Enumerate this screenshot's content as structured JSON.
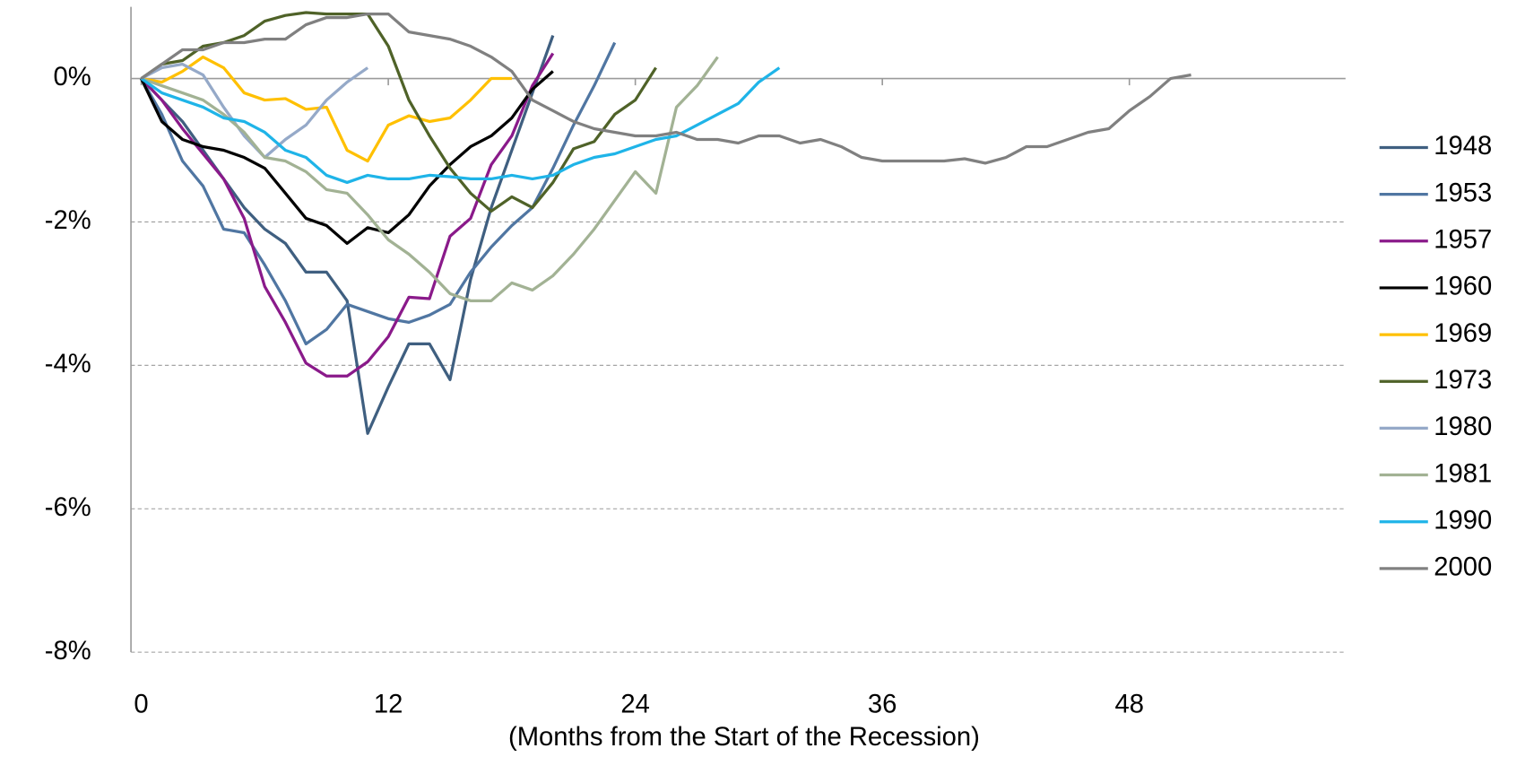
{
  "chart_data": {
    "type": "line",
    "x_label": "(Months from the Start of the Recession)",
    "x": [
      0,
      1,
      2,
      3,
      4,
      5,
      6,
      7,
      8,
      9,
      10,
      11,
      12,
      13,
      14,
      15,
      16,
      17,
      18,
      19,
      20,
      21,
      22,
      23,
      24,
      25,
      26,
      27,
      28,
      29,
      30,
      31,
      32,
      33,
      34,
      35,
      36,
      37,
      38,
      39,
      40,
      41,
      42,
      43,
      44,
      45,
      46,
      47,
      48,
      49,
      50,
      51
    ],
    "xlim": [
      -0.5,
      58.5
    ],
    "xticks": [
      0,
      12,
      24,
      36,
      48
    ],
    "ylim": [
      -8,
      1
    ],
    "yticks": [
      {
        "value": 0,
        "label": "0%"
      },
      {
        "value": -2,
        "label": "-2%"
      },
      {
        "value": -4,
        "label": "-4%"
      },
      {
        "value": -6,
        "label": "-6%"
      },
      {
        "value": -8,
        "label": "-8%"
      }
    ],
    "grid": true,
    "legend": "right",
    "series": [
      {
        "name": "1948",
        "color": "#3f5f80",
        "values": [
          0,
          -0.3,
          -0.6,
          -1.0,
          -1.4,
          -1.8,
          -2.1,
          -2.3,
          -2.7,
          -2.7,
          -3.1,
          -4.95,
          -4.3,
          -3.7,
          -3.7,
          -4.2,
          -2.8,
          -1.8,
          -1.0,
          -0.2,
          0.6,
          null,
          null,
          null,
          null,
          null,
          null,
          null,
          null,
          null,
          null,
          null,
          null,
          null,
          null,
          null,
          null,
          null,
          null,
          null,
          null,
          null,
          null,
          null,
          null,
          null,
          null,
          null,
          null,
          null,
          null,
          null
        ]
      },
      {
        "name": "1953",
        "color": "#5076a2",
        "values": [
          0,
          -0.5,
          -1.15,
          -1.5,
          -2.1,
          -2.15,
          -2.6,
          -3.1,
          -3.7,
          -3.5,
          -3.15,
          -3.25,
          -3.35,
          -3.4,
          -3.3,
          -3.15,
          -2.7,
          -2.35,
          -2.05,
          -1.8,
          -1.25,
          -0.65,
          -0.1,
          0.5,
          null,
          null,
          null,
          null,
          null,
          null,
          null,
          null,
          null,
          null,
          null,
          null,
          null,
          null,
          null,
          null,
          null,
          null,
          null,
          null,
          null,
          null,
          null,
          null,
          null,
          null,
          null,
          null
        ]
      },
      {
        "name": "1957",
        "color": "#8a1a8a",
        "values": [
          0,
          -0.3,
          -0.7,
          -1.05,
          -1.4,
          -1.95,
          -2.9,
          -3.4,
          -3.97,
          -4.15,
          -4.15,
          -3.95,
          -3.6,
          -3.05,
          -3.07,
          -2.2,
          -1.95,
          -1.2,
          -0.8,
          -0.1,
          0.35,
          null,
          null,
          null,
          null,
          null,
          null,
          null,
          null,
          null,
          null,
          null,
          null,
          null,
          null,
          null,
          null,
          null,
          null,
          null,
          null,
          null,
          null,
          null,
          null,
          null,
          null,
          null,
          null,
          null,
          null,
          null
        ]
      },
      {
        "name": "1960",
        "color": "#000000",
        "values": [
          0,
          -0.6,
          -0.85,
          -0.95,
          -1.0,
          -1.1,
          -1.25,
          -1.6,
          -1.95,
          -2.05,
          -2.3,
          -2.08,
          -2.15,
          -1.9,
          -1.5,
          -1.2,
          -0.95,
          -0.8,
          -0.55,
          -0.15,
          0.1,
          null,
          null,
          null,
          null,
          null,
          null,
          null,
          null,
          null,
          null,
          null,
          null,
          null,
          null,
          null,
          null,
          null,
          null,
          null,
          null,
          null,
          null,
          null,
          null,
          null,
          null,
          null,
          null,
          null,
          null,
          null
        ]
      },
      {
        "name": "1969",
        "color": "#ffc000",
        "values": [
          0,
          -0.05,
          0.1,
          0.3,
          0.15,
          -0.2,
          -0.3,
          -0.28,
          -0.43,
          -0.4,
          -1.0,
          -1.15,
          -0.65,
          -0.52,
          -0.6,
          -0.55,
          -0.3,
          0,
          0,
          null,
          null,
          null,
          null,
          null,
          null,
          null,
          null,
          null,
          null,
          null,
          null,
          null,
          null,
          null,
          null,
          null,
          null,
          null,
          null,
          null,
          null,
          null,
          null,
          null,
          null,
          null,
          null,
          null,
          null,
          null,
          null,
          null
        ]
      },
      {
        "name": "1973",
        "color": "#4f6228",
        "values": [
          0,
          0.2,
          0.25,
          0.45,
          0.5,
          0.6,
          0.8,
          0.88,
          0.92,
          0.9,
          0.9,
          0.9,
          0.45,
          -0.3,
          -0.8,
          -1.25,
          -1.6,
          -1.85,
          -1.65,
          -1.8,
          -1.45,
          -0.98,
          -0.88,
          -0.5,
          -0.3,
          0.15,
          null,
          null,
          null,
          null,
          null,
          null,
          null,
          null,
          null,
          null,
          null,
          null,
          null,
          null,
          null,
          null,
          null,
          null,
          null,
          null,
          null,
          null,
          null,
          null,
          null,
          null
        ]
      },
      {
        "name": "1980",
        "color": "#95a9c8",
        "values": [
          0,
          0.15,
          0.2,
          0.05,
          -0.4,
          -0.8,
          -1.1,
          -0.85,
          -0.65,
          -0.3,
          -0.05,
          0.15,
          null,
          null,
          null,
          null,
          null,
          null,
          null,
          null,
          null,
          null,
          null,
          null,
          null,
          null,
          null,
          null,
          null,
          null,
          null,
          null,
          null,
          null,
          null,
          null,
          null,
          null,
          null,
          null,
          null,
          null,
          null,
          null,
          null,
          null,
          null,
          null,
          null,
          null,
          null,
          null
        ]
      },
      {
        "name": "1981",
        "color": "#a2b294",
        "values": [
          0,
          -0.1,
          -0.2,
          -0.3,
          -0.5,
          -0.75,
          -1.1,
          -1.15,
          -1.3,
          -1.55,
          -1.6,
          -1.9,
          -2.25,
          -2.45,
          -2.7,
          -3.0,
          -3.1,
          -3.1,
          -2.85,
          -2.95,
          -2.75,
          -2.45,
          -2.1,
          -1.7,
          -1.3,
          -1.6,
          -0.4,
          -0.1,
          0.3,
          null,
          null,
          null,
          null,
          null,
          null,
          null,
          null,
          null,
          null,
          null,
          null,
          null,
          null,
          null,
          null,
          null,
          null,
          null,
          null,
          null,
          null,
          null
        ]
      },
      {
        "name": "1990",
        "color": "#1fb4e8",
        "values": [
          0,
          -0.2,
          -0.3,
          -0.4,
          -0.55,
          -0.6,
          -0.75,
          -1.0,
          -1.1,
          -1.35,
          -1.45,
          -1.35,
          -1.4,
          -1.4,
          -1.35,
          -1.37,
          -1.4,
          -1.4,
          -1.35,
          -1.4,
          -1.35,
          -1.2,
          -1.1,
          -1.05,
          -0.95,
          -0.85,
          -0.8,
          -0.65,
          -0.5,
          -0.35,
          -0.05,
          0.15,
          null,
          null,
          null,
          null,
          null,
          null,
          null,
          null,
          null,
          null,
          null,
          null,
          null,
          null,
          null,
          null,
          null,
          null,
          null,
          null
        ]
      },
      {
        "name": "2000",
        "color": "#808080",
        "values": [
          0,
          0.2,
          0.4,
          0.4,
          0.5,
          0.5,
          0.55,
          0.55,
          0.75,
          0.85,
          0.85,
          0.9,
          0.9,
          0.65,
          0.6,
          0.55,
          0.45,
          0.3,
          0.1,
          -0.3,
          -0.45,
          -0.6,
          -0.7,
          -0.75,
          -0.8,
          -0.8,
          -0.75,
          -0.85,
          -0.85,
          -0.9,
          -0.8,
          -0.8,
          -0.9,
          -0.85,
          -0.95,
          -1.1,
          -1.15,
          -1.15,
          -1.15,
          -1.15,
          -1.12,
          -1.18,
          -1.1,
          -0.95,
          -0.95,
          -0.85,
          -0.75,
          -0.7,
          -0.45,
          -0.25,
          0,
          0.05
        ]
      }
    ]
  }
}
